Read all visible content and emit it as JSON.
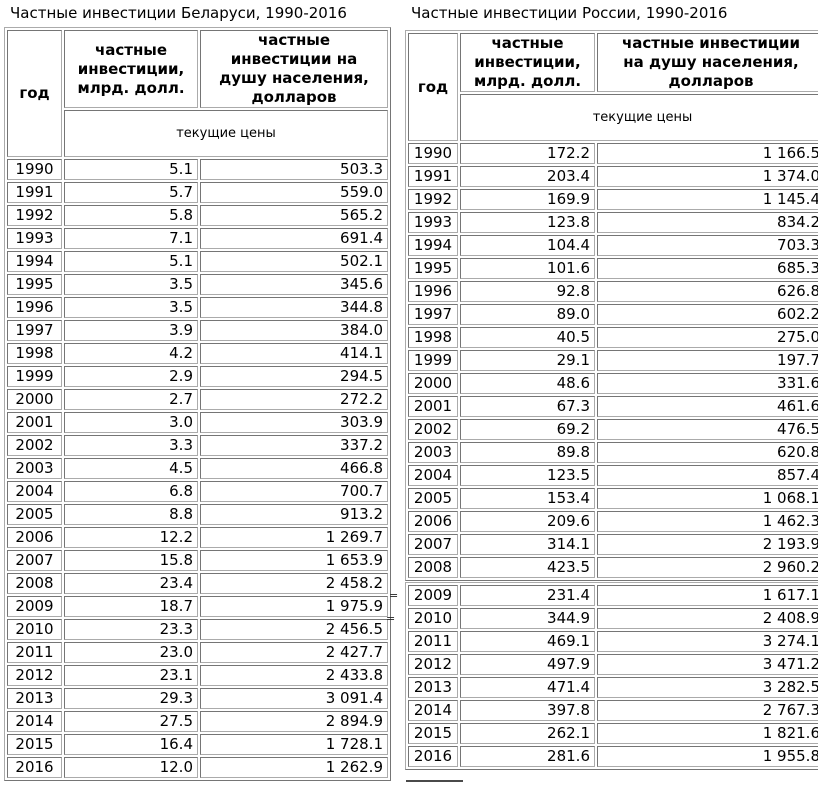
{
  "tables": [
    {
      "id": "belarus",
      "title": "Частные инвестиции Беларуси, 1990-2016",
      "columns": {
        "year": "год",
        "investments": "частные\nинвестиции,\nмлрд. долл.",
        "per_capita": "частные\nинвестиции на\nдушу населения,\nдолларов"
      },
      "subheader": "текущие цены",
      "rows": [
        [
          "1990",
          "5.1",
          "503.3"
        ],
        [
          "1991",
          "5.7",
          "559.0"
        ],
        [
          "1992",
          "5.8",
          "565.2"
        ],
        [
          "1993",
          "7.1",
          "691.4"
        ],
        [
          "1994",
          "5.1",
          "502.1"
        ],
        [
          "1995",
          "3.5",
          "345.6"
        ],
        [
          "1996",
          "3.5",
          "344.8"
        ],
        [
          "1997",
          "3.9",
          "384.0"
        ],
        [
          "1998",
          "4.2",
          "414.1"
        ],
        [
          "1999",
          "2.9",
          "294.5"
        ],
        [
          "2000",
          "2.7",
          "272.2"
        ],
        [
          "2001",
          "3.0",
          "303.9"
        ],
        [
          "2002",
          "3.3",
          "337.2"
        ],
        [
          "2003",
          "4.5",
          "466.8"
        ],
        [
          "2004",
          "6.8",
          "700.7"
        ],
        [
          "2005",
          "8.8",
          "913.2"
        ],
        [
          "2006",
          "12.2",
          "1 269.7"
        ],
        [
          "2007",
          "15.8",
          "1 653.9"
        ],
        [
          "2008",
          "23.4",
          "2 458.2"
        ],
        [
          "2009",
          "18.7",
          "1 975.9"
        ],
        [
          "2010",
          "23.3",
          "2 456.5"
        ],
        [
          "2011",
          "23.0",
          "2 427.7"
        ],
        [
          "2012",
          "23.1",
          "2 433.8"
        ],
        [
          "2013",
          "29.3",
          "3 091.4"
        ],
        [
          "2014",
          "27.5",
          "2 894.9"
        ],
        [
          "2015",
          "16.4",
          "1 728.1"
        ],
        [
          "2016",
          "12.0",
          "1 262.9"
        ]
      ]
    },
    {
      "id": "russia",
      "title": "Частные инвестиции России, 1990-2016",
      "columns": {
        "year": "год",
        "investments": "частные\nинвестиции,\nмлрд. долл.",
        "per_capita": "частные инвестиции\nна душу населения,\nдолларов"
      },
      "subheader": "текущие цены",
      "rows_a": [
        [
          "1990",
          "172.2",
          "1 166.5"
        ],
        [
          "1991",
          "203.4",
          "1 374.0"
        ],
        [
          "1992",
          "169.9",
          "1 145.4"
        ],
        [
          "1993",
          "123.8",
          "834.2"
        ],
        [
          "1994",
          "104.4",
          "703.3"
        ],
        [
          "1995",
          "101.6",
          "685.3"
        ],
        [
          "1996",
          "92.8",
          "626.8"
        ],
        [
          "1997",
          "89.0",
          "602.2"
        ],
        [
          "1998",
          "40.5",
          "275.0"
        ],
        [
          "1999",
          "29.1",
          "197.7"
        ],
        [
          "2000",
          "48.6",
          "331.6"
        ],
        [
          "2001",
          "67.3",
          "461.6"
        ],
        [
          "2002",
          "69.2",
          "476.5"
        ],
        [
          "2003",
          "89.8",
          "620.8"
        ],
        [
          "2004",
          "123.5",
          "857.4"
        ],
        [
          "2005",
          "153.4",
          "1 068.1"
        ],
        [
          "2006",
          "209.6",
          "1 462.3"
        ],
        [
          "2007",
          "314.1",
          "2 193.9"
        ],
        [
          "2008",
          "423.5",
          "2 960.2"
        ]
      ],
      "rows_b": [
        [
          "2009",
          "231.4",
          "1 617.1"
        ],
        [
          "2010",
          "344.9",
          "2 408.9"
        ],
        [
          "2011",
          "469.1",
          "3 274.1"
        ],
        [
          "2012",
          "497.9",
          "3 471.2"
        ],
        [
          "2013",
          "471.4",
          "3 282.5"
        ],
        [
          "2014",
          "397.8",
          "2 767.3"
        ],
        [
          "2015",
          "262.1",
          "1 821.6"
        ],
        [
          "2016",
          "281.6",
          "1 955.8"
        ]
      ]
    }
  ],
  "artifacts": {
    "marks": [
      "=",
      "="
    ]
  },
  "chart_data": [
    {
      "type": "table",
      "title": "Частные инвестиции Беларуси, 1990-2016",
      "columns": [
        "год",
        "частные инвестиции, млрд. долл.",
        "частные инвестиции на душу населения, долларов"
      ],
      "note": "текущие цены",
      "rows": [
        [
          1990,
          5.1,
          503.3
        ],
        [
          1991,
          5.7,
          559.0
        ],
        [
          1992,
          5.8,
          565.2
        ],
        [
          1993,
          7.1,
          691.4
        ],
        [
          1994,
          5.1,
          502.1
        ],
        [
          1995,
          3.5,
          345.6
        ],
        [
          1996,
          3.5,
          344.8
        ],
        [
          1997,
          3.9,
          384.0
        ],
        [
          1998,
          4.2,
          414.1
        ],
        [
          1999,
          2.9,
          294.5
        ],
        [
          2000,
          2.7,
          272.2
        ],
        [
          2001,
          3.0,
          303.9
        ],
        [
          2002,
          3.3,
          337.2
        ],
        [
          2003,
          4.5,
          466.8
        ],
        [
          2004,
          6.8,
          700.7
        ],
        [
          2005,
          8.8,
          913.2
        ],
        [
          2006,
          12.2,
          1269.7
        ],
        [
          2007,
          15.8,
          1653.9
        ],
        [
          2008,
          23.4,
          2458.2
        ],
        [
          2009,
          18.7,
          1975.9
        ],
        [
          2010,
          23.3,
          2456.5
        ],
        [
          2011,
          23.0,
          2427.7
        ],
        [
          2012,
          23.1,
          2433.8
        ],
        [
          2013,
          29.3,
          3091.4
        ],
        [
          2014,
          27.5,
          2894.9
        ],
        [
          2015,
          16.4,
          1728.1
        ],
        [
          2016,
          12.0,
          1262.9
        ]
      ]
    },
    {
      "type": "table",
      "title": "Частные инвестиции России, 1990-2016",
      "columns": [
        "год",
        "частные инвестиции, млрд. долл.",
        "частные инвестиции на душу населения, долларов"
      ],
      "note": "текущие цены",
      "rows": [
        [
          1990,
          172.2,
          1166.5
        ],
        [
          1991,
          203.4,
          1374.0
        ],
        [
          1992,
          169.9,
          1145.4
        ],
        [
          1993,
          123.8,
          834.2
        ],
        [
          1994,
          104.4,
          703.3
        ],
        [
          1995,
          101.6,
          685.3
        ],
        [
          1996,
          92.8,
          626.8
        ],
        [
          1997,
          89.0,
          602.2
        ],
        [
          1998,
          40.5,
          275.0
        ],
        [
          1999,
          29.1,
          197.7
        ],
        [
          2000,
          48.6,
          331.6
        ],
        [
          2001,
          67.3,
          461.6
        ],
        [
          2002,
          69.2,
          476.5
        ],
        [
          2003,
          89.8,
          620.8
        ],
        [
          2004,
          123.5,
          857.4
        ],
        [
          2005,
          153.4,
          1068.1
        ],
        [
          2006,
          209.6,
          1462.3
        ],
        [
          2007,
          314.1,
          2193.9
        ],
        [
          2008,
          423.5,
          2960.2
        ],
        [
          2009,
          231.4,
          1617.1
        ],
        [
          2010,
          344.9,
          2408.9
        ],
        [
          2011,
          469.1,
          3274.1
        ],
        [
          2012,
          497.9,
          3471.2
        ],
        [
          2013,
          471.4,
          3282.5
        ],
        [
          2014,
          397.8,
          2767.3
        ],
        [
          2015,
          262.1,
          1821.6
        ],
        [
          2016,
          281.6,
          1955.8
        ]
      ]
    }
  ]
}
